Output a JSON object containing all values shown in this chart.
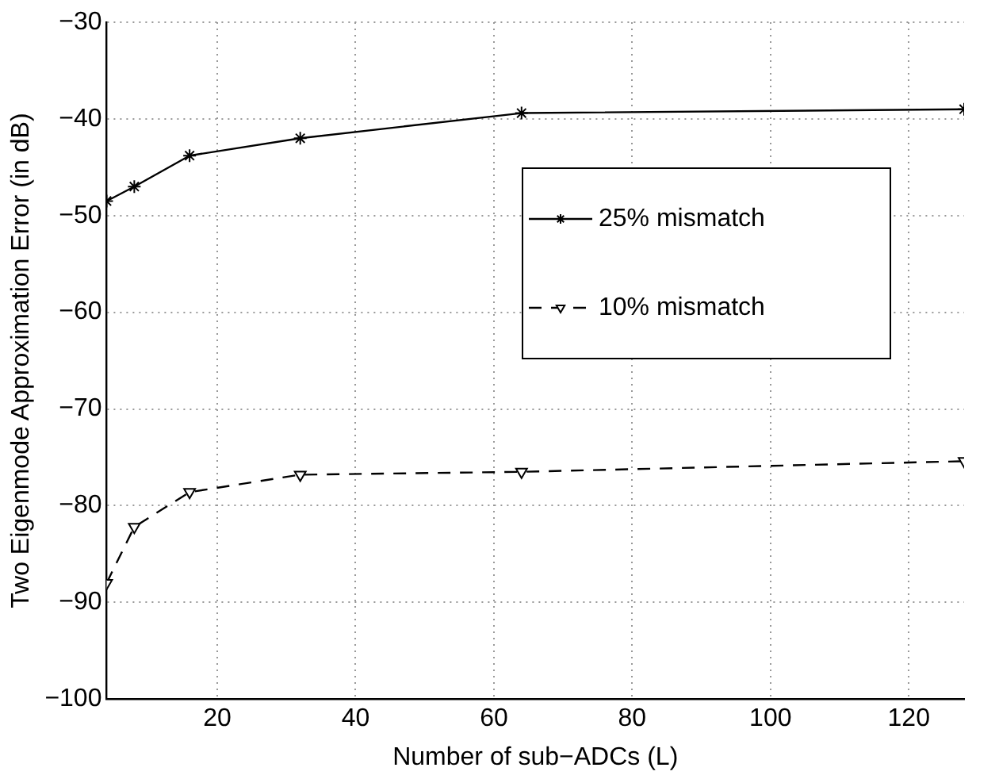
{
  "chart_data": {
    "type": "line",
    "xlabel": "Number of sub−ADCs (L)",
    "ylabel": "Two Eigenmode Approximation Error (in dB)",
    "x": [
      4,
      8,
      16,
      32,
      64,
      128
    ],
    "series": [
      {
        "name": "25% mismatch",
        "color": "#000000",
        "marker": "cross",
        "line_style": "solid",
        "values": [
          -48.5,
          -47,
          -43.8,
          -42,
          -39.4,
          -39
        ]
      },
      {
        "name": "10% mismatch",
        "color": "#000000",
        "marker": "triangle",
        "line_style": "dashed",
        "values": [
          -88,
          -82.2,
          -78.6,
          -76.8,
          -76.5,
          -75.4
        ]
      }
    ],
    "xlim": [
      4,
      128
    ],
    "xticks": [
      20,
      40,
      60,
      80,
      100,
      120
    ],
    "ylim": [
      -100,
      -30
    ],
    "yticks": [
      -100,
      -90,
      -80,
      -70,
      -60,
      -50,
      -40,
      -30
    ],
    "grid": true,
    "legend": "right"
  }
}
